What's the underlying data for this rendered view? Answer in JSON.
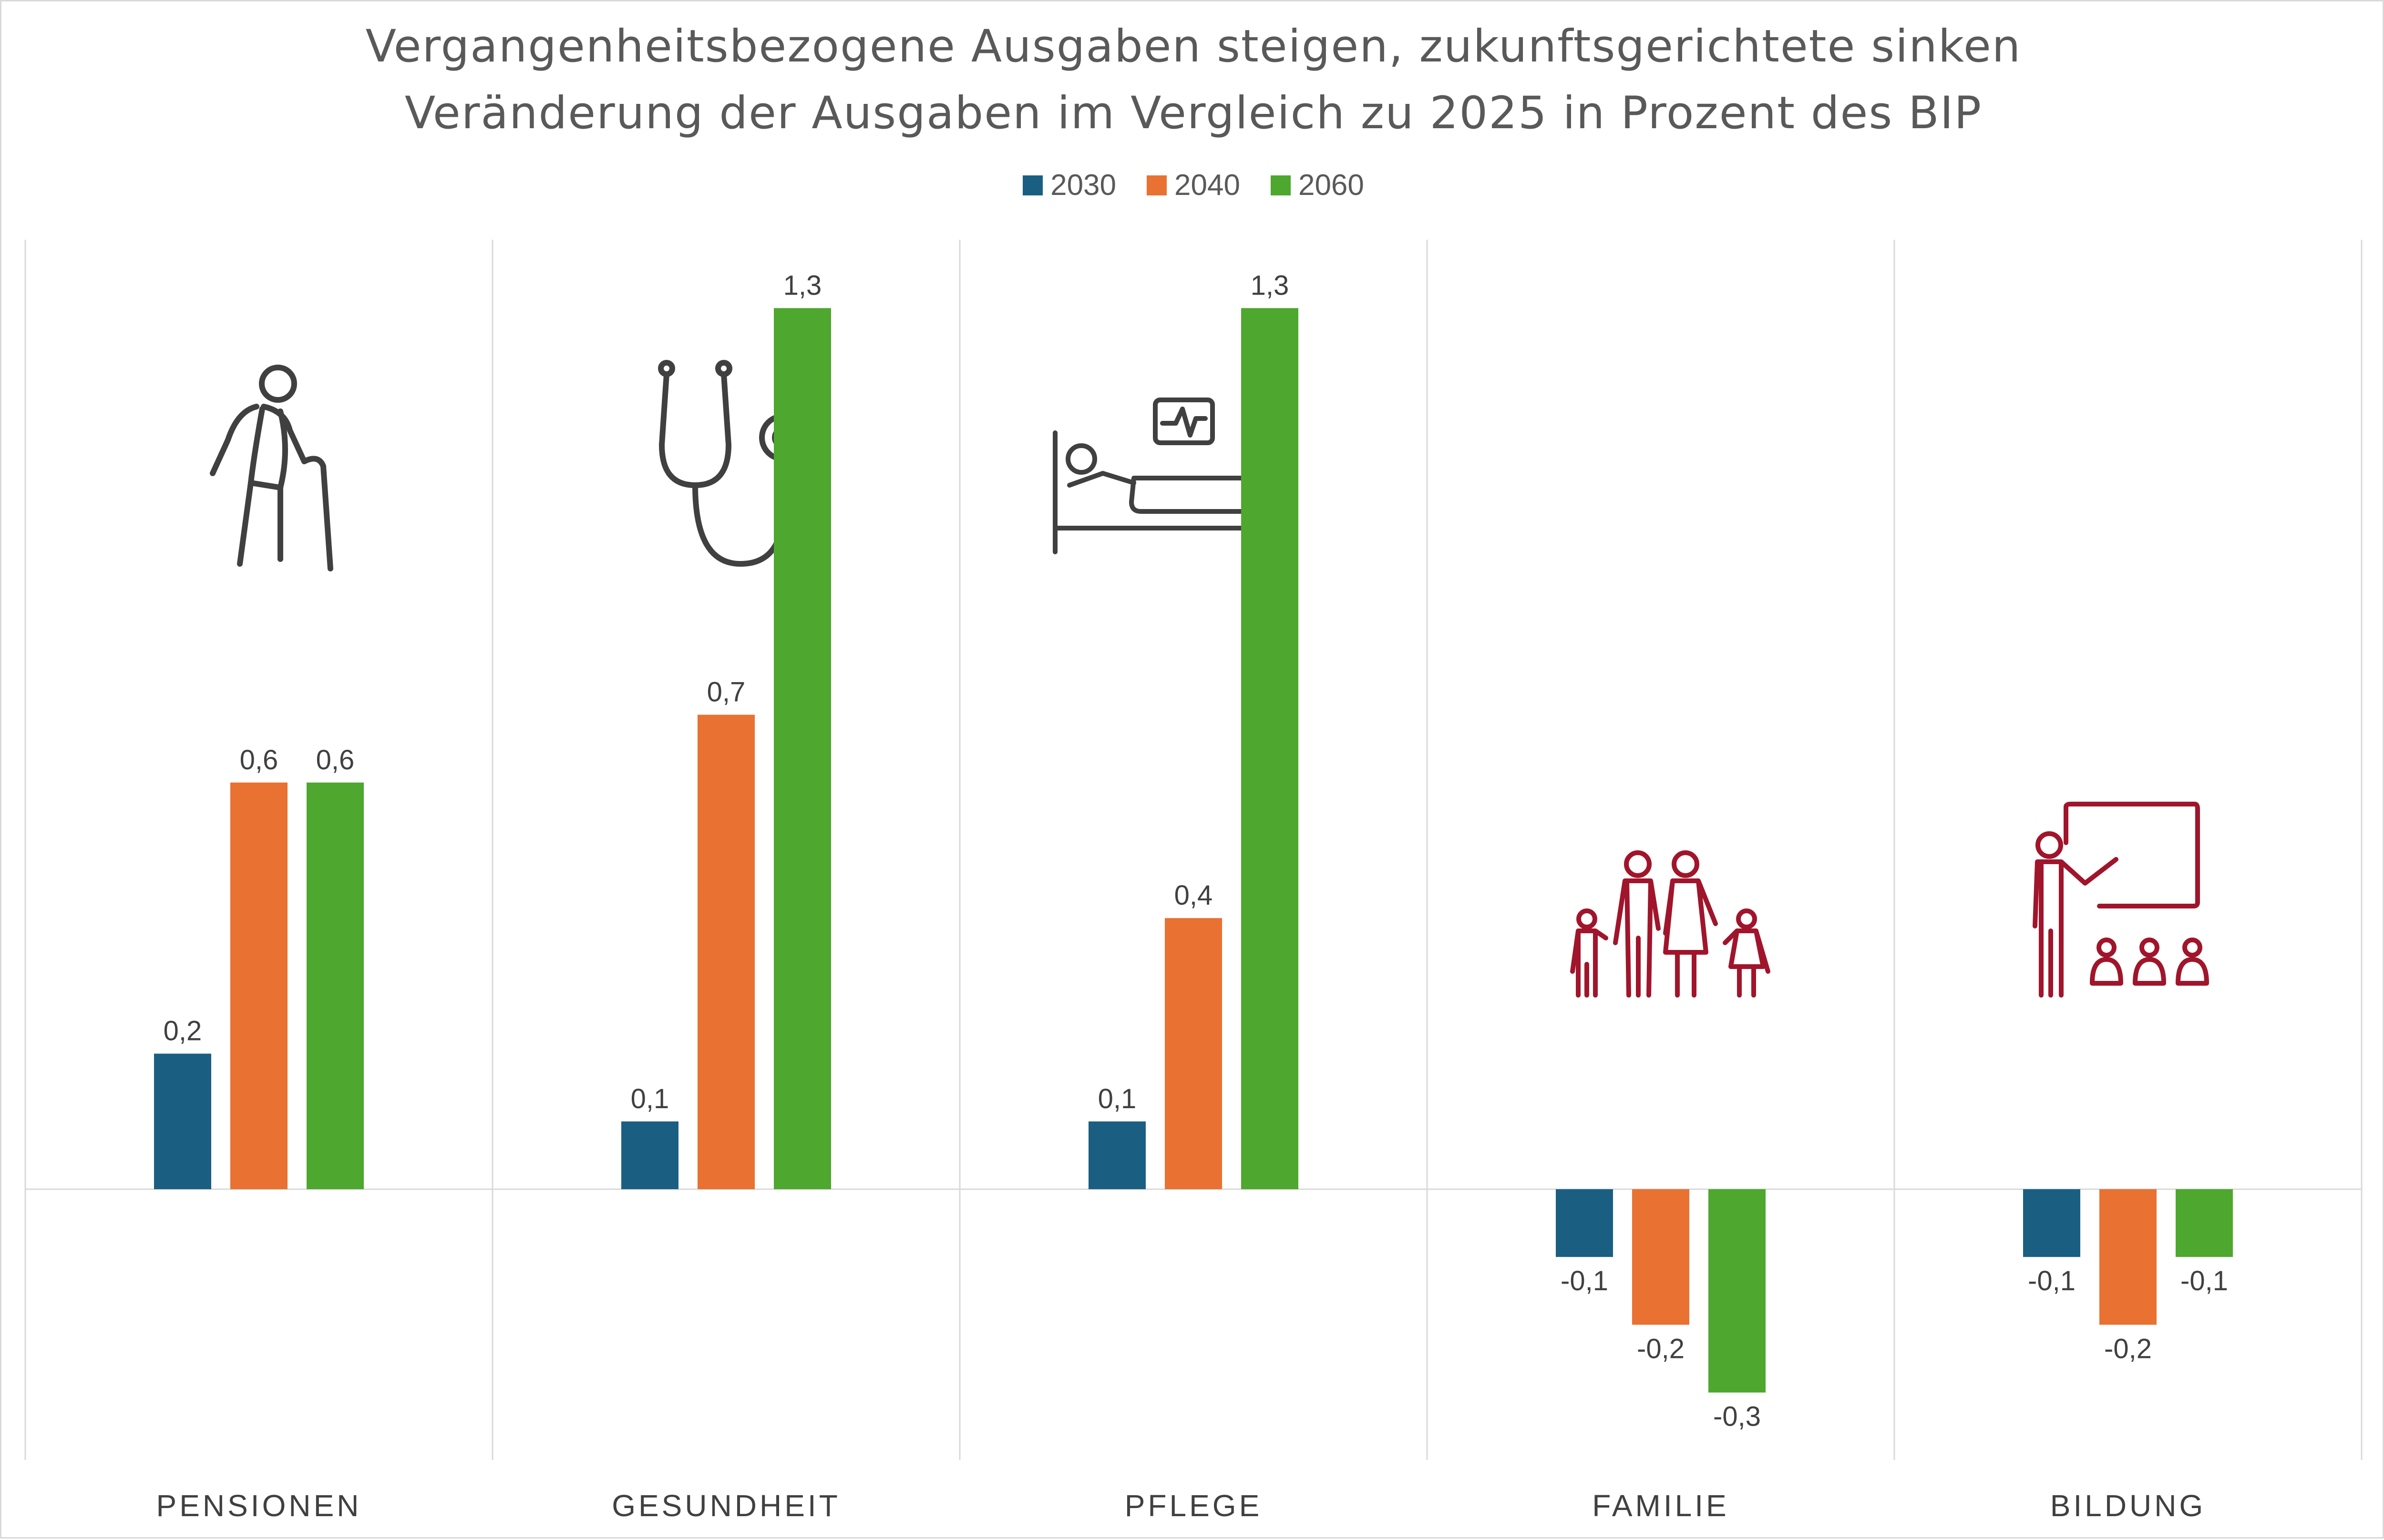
{
  "chart_data": {
    "type": "bar",
    "title": "Vergangenheitsbezogene Ausgaben steigen, zukunftsgerichtete sinken",
    "subtitle": "Veränderung der Ausgaben im Vergleich zu 2025 in Prozent des BIP",
    "categories": [
      "PENSIONEN",
      "GESUNDHEIT",
      "PFLEGE",
      "FAMILIE",
      "BILDUNG"
    ],
    "series": [
      {
        "name": "2030",
        "color": "#1a5f82",
        "values": [
          0.2,
          0.1,
          0.1,
          -0.1,
          -0.1
        ],
        "labels": [
          "0,2",
          "0,1",
          "0,1",
          "-0,1",
          "-0,1"
        ]
      },
      {
        "name": "2040",
        "color": "#e97132",
        "values": [
          0.6,
          0.7,
          0.4,
          -0.2,
          -0.2
        ],
        "labels": [
          "0,6",
          "0,7",
          "0,4",
          "-0,2",
          "-0,2"
        ]
      },
      {
        "name": "2060",
        "color": "#4ea72e",
        "values": [
          0.6,
          1.3,
          1.3,
          -0.3,
          -0.1
        ],
        "labels": [
          "0,6",
          "1,3",
          "1,3",
          "-0,3",
          "-0,1"
        ]
      }
    ],
    "icons": [
      "elderly-person-icon",
      "stethoscope-icon",
      "hospital-bed-icon",
      "family-icon",
      "teacher-icon"
    ],
    "icon_colors": [
      "#404040",
      "#404040",
      "#404040",
      "#a0152b",
      "#a0152b"
    ],
    "xlabel": "",
    "ylabel": "",
    "ylim": [
      -0.4,
      1.4
    ],
    "grid": false,
    "legend_position": "top"
  }
}
